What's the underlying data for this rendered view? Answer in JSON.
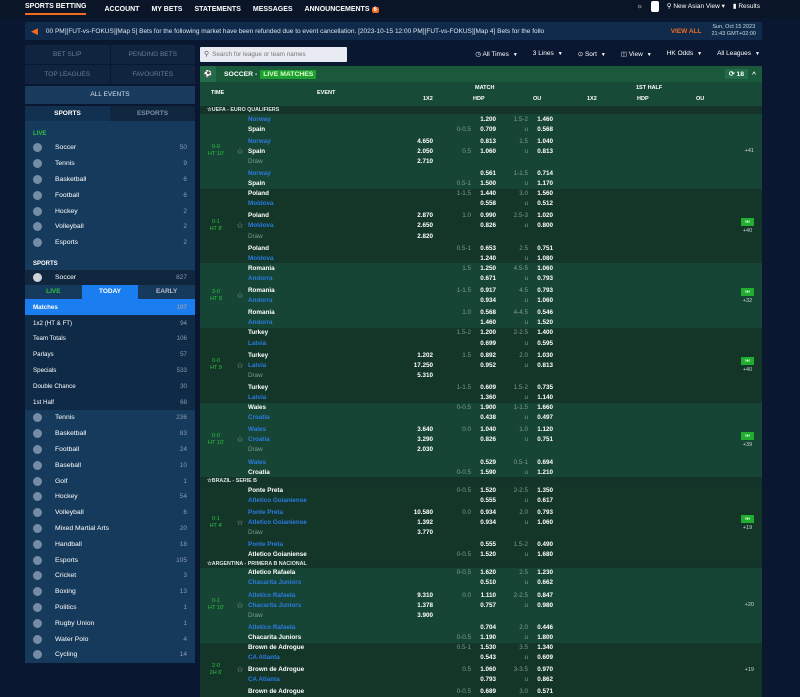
{
  "nav": {
    "items": [
      "SPORTS BETTING",
      "ACCOUNT",
      "MY BETS",
      "STATEMENTS",
      "MESSAGES",
      "ANNOUNCEMENTS"
    ],
    "announcements_badge": "6",
    "view": "New Asian View",
    "results": "Results"
  },
  "ticker": {
    "message": "00 PM][FUT-vs-FOKUS][Map 5]      Bets for the following market have been refunded due to event cancellation. [2023-10-15 12:00 PM][FUT-vs-FOKUS][Map 4]      Bets for the follo",
    "view_all": "VIEW ALL",
    "date": "Sun, Oct 15 2023",
    "time": "21:43 GMT+02:00"
  },
  "sidebar": {
    "tabs": [
      "BET SLIP",
      "PENDING BETS",
      "TOP LEAGUES",
      "FAVOURITES"
    ],
    "all_events": "ALL EVENTS",
    "sport_tabs": [
      "SPORTS",
      "ESPORTS"
    ],
    "live_label": "LIVE",
    "live_items": [
      {
        "name": "Soccer",
        "count": "50"
      },
      {
        "name": "Tennis",
        "count": "9"
      },
      {
        "name": "Basketball",
        "count": "6"
      },
      {
        "name": "Football",
        "count": "6"
      },
      {
        "name": "Hockey",
        "count": "2"
      },
      {
        "name": "Volleyball",
        "count": "2"
      },
      {
        "name": "Esports",
        "count": "2"
      }
    ],
    "sports_label": "SPORTS",
    "soccer": {
      "name": "Soccer",
      "count": "827"
    },
    "day_tabs": [
      "LIVE",
      "TODAY",
      "EARLY"
    ],
    "markets": [
      {
        "name": "Matches",
        "count": "107"
      },
      {
        "name": "1x2 (HT & FT)",
        "count": "94"
      },
      {
        "name": "Team Totals",
        "count": "106"
      },
      {
        "name": "Parlays",
        "count": "57"
      },
      {
        "name": "Specials",
        "count": "533"
      },
      {
        "name": "Double Chance",
        "count": "30"
      },
      {
        "name": "1st Half",
        "count": "68"
      }
    ],
    "sports": [
      {
        "name": "Tennis",
        "count": "236"
      },
      {
        "name": "Basketball",
        "count": "83"
      },
      {
        "name": "Football",
        "count": "24"
      },
      {
        "name": "Baseball",
        "count": "10"
      },
      {
        "name": "Golf",
        "count": "1"
      },
      {
        "name": "Hockey",
        "count": "54"
      },
      {
        "name": "Volleyball",
        "count": "6"
      },
      {
        "name": "Mixed Martial Arts",
        "count": "20"
      },
      {
        "name": "Handball",
        "count": "18"
      },
      {
        "name": "Esports",
        "count": "105"
      },
      {
        "name": "Cricket",
        "count": "3"
      },
      {
        "name": "Boxing",
        "count": "13"
      },
      {
        "name": "Politics",
        "count": "1"
      },
      {
        "name": "Rugby Union",
        "count": "1"
      },
      {
        "name": "Water Polo",
        "count": "4"
      },
      {
        "name": "Cycling",
        "count": "14"
      }
    ]
  },
  "filters": {
    "search_placeholder": "Search for league or team names",
    "times": "All Times",
    "lines": "3 Lines",
    "sort": "Sort",
    "view": "View",
    "odds": "HK Odds",
    "leagues": "All Leagues"
  },
  "section": {
    "sport": "SOCCER -",
    "live": "LIVE MATCHES",
    "count": "18"
  },
  "columns": {
    "time": "TIME",
    "event": "EVENT",
    "match": "MATCH",
    "first_half": "1ST HALF",
    "x12": "1X2",
    "hdp": "HDP",
    "ou": "OU",
    "x12b": "1X2",
    "hdpb": "HDP",
    "oub": "OU"
  },
  "colors": {
    "accent": "#f26b21",
    "live_green": "#1d9e30",
    "team_blue": "#2a7be0",
    "today_blue": "#1a7ef0"
  },
  "leagues": [
    {
      "name": "UEFA - EURO QUALIFIERS",
      "matches": [
        {
          "score": "0-0",
          "period": "HT 10'",
          "more": "+41",
          "field_icon": false,
          "rows": [
            [
              "Norway",
              "",
              "",
              "1.200",
              "1.5-2",
              "1.460",
              "b"
            ],
            [
              "Spain",
              "",
              "0-0.5",
              "0.709",
              "u",
              "0.568",
              "w"
            ],
            [
              "Norway",
              "4.650",
              "",
              "0.813",
              "1.5",
              "1.040",
              "b"
            ],
            [
              "Spain",
              "2.050",
              "0.5",
              "1.060",
              "u",
              "0.813",
              "w"
            ],
            [
              "Draw",
              "2.710",
              "",
              "",
              "",
              "",
              "d"
            ],
            [
              "Norway",
              "",
              "",
              "0.561",
              "1-1.5",
              "0.714",
              "b"
            ],
            [
              "Spain",
              "",
              "0.5-1",
              "1.500",
              "u",
              "1.170",
              "w"
            ]
          ]
        },
        {
          "score": "0-1",
          "period": "HT 8'",
          "more": "+40",
          "field_icon": true,
          "rows": [
            [
              "Poland",
              "",
              "1-1.5",
              "1.440",
              "3.0",
              "1.560",
              "w"
            ],
            [
              "Moldova",
              "",
              "",
              "0.558",
              "u",
              "0.512",
              "b"
            ],
            [
              "Poland",
              "2.870",
              "1.0",
              "0.990",
              "2.5-3",
              "1.020",
              "w"
            ],
            [
              "Moldova",
              "2.650",
              "",
              "0.826",
              "u",
              "0.800",
              "b"
            ],
            [
              "Draw",
              "2.820",
              "",
              "",
              "",
              "",
              "d"
            ],
            [
              "Poland",
              "",
              "0.5-1",
              "0.653",
              "2.5",
              "0.751",
              "w"
            ],
            [
              "Moldova",
              "",
              "",
              "1.240",
              "u",
              "1.080",
              "b"
            ]
          ]
        },
        {
          "score": "3-0",
          "period": "HT 8",
          "more": "+32",
          "field_icon": true,
          "rows": [
            [
              "Romania",
              "",
              "1.5",
              "1.250",
              "4.5-5",
              "1.060",
              "w"
            ],
            [
              "Andorra",
              "",
              "",
              "0.671",
              "u",
              "0.793",
              "b"
            ],
            [
              "Romania",
              "",
              "1-1.5",
              "0.917",
              "4.5",
              "0.793",
              "w"
            ],
            [
              "Andorra",
              "",
              "",
              "0.934",
              "u",
              "1.060",
              "b"
            ],
            [
              "Romania",
              "",
              "1.0",
              "0.568",
              "4-4.5",
              "0.546",
              "w"
            ],
            [
              "Andorra",
              "",
              "",
              "1.460",
              "u",
              "1.520",
              "b"
            ]
          ]
        },
        {
          "score": "0-0",
          "period": "HT 9",
          "more": "+40",
          "field_icon": true,
          "rows": [
            [
              "Turkey",
              "",
              "1.5-2",
              "1.200",
              "2-2.5",
              "1.400",
              "w"
            ],
            [
              "Latvia",
              "",
              "",
              "0.699",
              "u",
              "0.595",
              "b"
            ],
            [
              "Turkey",
              "1.202",
              "1.5",
              "0.892",
              "2.0",
              "1.030",
              "w"
            ],
            [
              "Latvia",
              "17.250",
              "",
              "0.952",
              "u",
              "0.813",
              "b"
            ],
            [
              "Draw",
              "5.310",
              "",
              "",
              "",
              "",
              "d"
            ],
            [
              "Turkey",
              "",
              "1-1.5",
              "0.609",
              "1.5-2",
              "0.735",
              "w"
            ],
            [
              "Latvia",
              "",
              "",
              "1.360",
              "u",
              "1.140",
              "b"
            ]
          ]
        },
        {
          "score": "0-0",
          "period": "HT 10'",
          "more": "+39",
          "field_icon": true,
          "rows": [
            [
              "Wales",
              "",
              "0-0.5",
              "1.900",
              "1-1.5",
              "1.660",
              "w"
            ],
            [
              "Croatia",
              "",
              "",
              "0.438",
              "u",
              "0.497",
              "b"
            ],
            [
              "Wales",
              "3.640",
              "0.0",
              "1.040",
              "1.0",
              "1.120",
              "b"
            ],
            [
              "Croatia",
              "3.290",
              "",
              "0.826",
              "u",
              "0.751",
              "b"
            ],
            [
              "Draw",
              "2.030",
              "",
              "",
              "",
              "",
              "d"
            ],
            [
              "Wales",
              "",
              "",
              "0.529",
              "0.5-1",
              "0.694",
              "b"
            ],
            [
              "Croatia",
              "",
              "0-0.5",
              "1.590",
              "u",
              "1.210",
              "w"
            ]
          ]
        }
      ]
    },
    {
      "name": "BRAZIL - SERIE B",
      "matches": [
        {
          "score": "0-1",
          "period": "HT 4'",
          "more": "+19",
          "field_icon": true,
          "rows": [
            [
              "Ponte Preta",
              "",
              "0-0.5",
              "1.520",
              "2-2.5",
              "1.350",
              "w"
            ],
            [
              "Atletico Goianiense",
              "",
              "",
              "0.555",
              "u",
              "0.617",
              "b"
            ],
            [
              "Ponte Preta",
              "10.580",
              "0.0",
              "0.934",
              "2.0",
              "0.793",
              "b"
            ],
            [
              "Atletico Goianiense",
              "1.392",
              "",
              "0.934",
              "u",
              "1.060",
              "b"
            ],
            [
              "Draw",
              "3.770",
              "",
              "",
              "",
              "",
              "d"
            ],
            [
              "Ponte Preta",
              "",
              "",
              "0.555",
              "1.5-2",
              "0.490",
              "b"
            ],
            [
              "Atletico Goianiense",
              "",
              "0-0.5",
              "1.520",
              "u",
              "1.680",
              "w"
            ]
          ]
        }
      ]
    },
    {
      "name": "ARGENTINA - PRIMERA B NACIONAL",
      "matches": [
        {
          "score": "0-1",
          "period": "HT 10'",
          "more": "+20",
          "field_icon": false,
          "rows": [
            [
              "Atletico Rafaela",
              "",
              "0-0.5",
              "1.620",
              "2.5",
              "1.230",
              "w"
            ],
            [
              "Chacarita Juniors",
              "",
              "",
              "0.510",
              "u",
              "0.662",
              "b"
            ],
            [
              "Atletico Rafaela",
              "9.310",
              "0.0",
              "1.110",
              "2-2.5",
              "0.847",
              "b"
            ],
            [
              "Chacarita Juniors",
              "1.378",
              "",
              "0.757",
              "u",
              "0.980",
              "b"
            ],
            [
              "Draw",
              "3.900",
              "",
              "",
              "",
              "",
              "d"
            ],
            [
              "Atletico Rafaela",
              "",
              "",
              "0.704",
              "2.0",
              "0.446",
              "b"
            ],
            [
              "Chacarita Juniors",
              "",
              "0-0.5",
              "1.190",
              "u",
              "1.800",
              "w"
            ]
          ]
        },
        {
          "score": "2-0",
          "period": "2H 6'",
          "more": "+19",
          "field_icon": false,
          "rows": [
            [
              "Brown de Adrogue",
              "",
              "0.5-1",
              "1.530",
              "3.5",
              "1.340",
              "w"
            ],
            [
              "CA Atlanta",
              "",
              "",
              "0.543",
              "u",
              "0.609",
              "b"
            ],
            [
              "Brown de Adrogue",
              "",
              "0.5",
              "1.060",
              "3-3.5",
              "0.970",
              "w"
            ],
            [
              "CA Atlanta",
              "",
              "",
              "0.793",
              "u",
              "0.862",
              "b"
            ],
            [
              "Brown de Adrogue",
              "",
              "0-0.5",
              "0.689",
              "3.0",
              "0.571",
              "w"
            ]
          ]
        }
      ]
    }
  ]
}
